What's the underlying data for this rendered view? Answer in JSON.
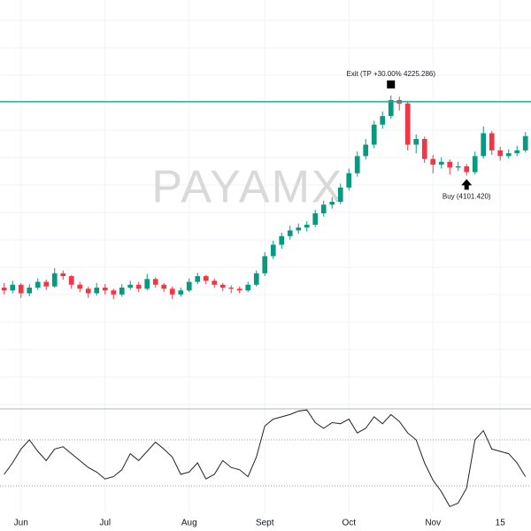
{
  "chart_data": {
    "type": "candlestick",
    "watermark": "PAYAMX",
    "up_color": "#089981",
    "down_color": "#f23645",
    "level_color": "#22ab94",
    "ylim": [
      3691,
      4403
    ],
    "xlim": [
      -0.5,
      62.66
    ],
    "xticks": [
      {
        "value": 2,
        "label": "Jun"
      },
      {
        "value": 12,
        "label": "Jul"
      },
      {
        "value": 22,
        "label": "Aug"
      },
      {
        "value": 31,
        "label": "Sept"
      },
      {
        "value": 41,
        "label": "Oct"
      },
      {
        "value": 51,
        "label": "Nov"
      },
      {
        "value": 59,
        "label": "15"
      }
    ],
    "grid": true,
    "ohlc": [
      [
        3900,
        3908,
        3888,
        3895
      ],
      [
        3895,
        3912,
        3890,
        3905
      ],
      [
        3905,
        3908,
        3882,
        3890
      ],
      [
        3890,
        3906,
        3885,
        3900
      ],
      [
        3900,
        3916,
        3896,
        3910
      ],
      [
        3910,
        3914,
        3896,
        3902
      ],
      [
        3902,
        3934,
        3900,
        3925
      ],
      [
        3925,
        3930,
        3914,
        3920
      ],
      [
        3920,
        3922,
        3898,
        3905
      ],
      [
        3905,
        3910,
        3892,
        3898
      ],
      [
        3898,
        3902,
        3882,
        3890
      ],
      [
        3890,
        3908,
        3886,
        3900
      ],
      [
        3900,
        3906,
        3888,
        3895
      ],
      [
        3895,
        3898,
        3880,
        3888
      ],
      [
        3888,
        3906,
        3884,
        3900
      ],
      [
        3900,
        3912,
        3896,
        3905
      ],
      [
        3905,
        3910,
        3892,
        3898
      ],
      [
        3898,
        3924,
        3895,
        3915
      ],
      [
        3915,
        3918,
        3900,
        3905
      ],
      [
        3905,
        3908,
        3892,
        3898
      ],
      [
        3898,
        3902,
        3880,
        3888
      ],
      [
        3888,
        3900,
        3884,
        3895
      ],
      [
        3895,
        3916,
        3892,
        3910
      ],
      [
        3910,
        3926,
        3906,
        3920
      ],
      [
        3920,
        3922,
        3906,
        3912
      ],
      [
        3912,
        3916,
        3900,
        3905
      ],
      [
        3905,
        3908,
        3894,
        3900
      ],
      [
        3900,
        3904,
        3890,
        3898
      ],
      [
        3898,
        3902,
        3890,
        3895
      ],
      [
        3895,
        3910,
        3892,
        3905
      ],
      [
        3905,
        3930,
        3902,
        3925
      ],
      [
        3925,
        3962,
        3920,
        3955
      ],
      [
        3955,
        3982,
        3950,
        3975
      ],
      [
        3975,
        3996,
        3968,
        3990
      ],
      [
        3990,
        4008,
        3984,
        4000
      ],
      [
        4000,
        4012,
        3994,
        4005
      ],
      [
        4005,
        4016,
        3998,
        4010
      ],
      [
        4010,
        4036,
        4006,
        4030
      ],
      [
        4030,
        4052,
        4024,
        4045
      ],
      [
        4045,
        4058,
        4038,
        4050
      ],
      [
        4050,
        4082,
        4046,
        4075
      ],
      [
        4075,
        4108,
        4070,
        4100
      ],
      [
        4100,
        4138,
        4094,
        4130
      ],
      [
        4130,
        4160,
        4124,
        4150
      ],
      [
        4150,
        4192,
        4144,
        4185
      ],
      [
        4185,
        4208,
        4178,
        4200
      ],
      [
        4200,
        4236,
        4195,
        4228
      ],
      [
        4228,
        4234,
        4210,
        4222
      ],
      [
        4222,
        4226,
        4140,
        4150
      ],
      [
        4150,
        4168,
        4135,
        4160
      ],
      [
        4160,
        4164,
        4118,
        4125
      ],
      [
        4125,
        4132,
        4100,
        4115
      ],
      [
        4115,
        4128,
        4108,
        4120
      ],
      [
        4120,
        4124,
        4098,
        4110
      ],
      [
        4110,
        4120,
        4104,
        4112
      ],
      [
        4112,
        4116,
        4096,
        4102
      ],
      [
        4102,
        4138,
        4098,
        4130
      ],
      [
        4130,
        4182,
        4126,
        4170
      ],
      [
        4170,
        4174,
        4132,
        4140
      ],
      [
        4140,
        4146,
        4122,
        4130
      ],
      [
        4130,
        4142,
        4126,
        4135
      ],
      [
        4135,
        4148,
        4130,
        4140
      ],
      [
        4140,
        4172,
        4136,
        4165
      ]
    ],
    "trades": [
      {
        "label": "Exit (TP +30.00% 4225.286)",
        "index": 46,
        "price": 4225.286,
        "side": "exit"
      },
      {
        "label": "Buy (4101.420)",
        "index": 55,
        "price": 4101.42,
        "side": "buy"
      }
    ],
    "oscillator": {
      "ylim": [
        0,
        100
      ],
      "levels": [
        70,
        30
      ],
      "color": "#222222",
      "values": [
        40,
        50,
        62,
        70,
        60,
        52,
        62,
        64,
        58,
        52,
        46,
        42,
        36,
        38,
        44,
        58,
        52,
        60,
        68,
        62,
        55,
        40,
        42,
        50,
        36,
        40,
        52,
        46,
        44,
        38,
        55,
        82,
        88,
        90,
        92,
        95,
        96,
        85,
        80,
        85,
        84,
        88,
        76,
        80,
        90,
        84,
        92,
        86,
        76,
        70,
        50,
        35,
        25,
        12,
        15,
        28,
        70,
        78,
        62,
        60,
        58,
        50,
        38
      ]
    }
  }
}
